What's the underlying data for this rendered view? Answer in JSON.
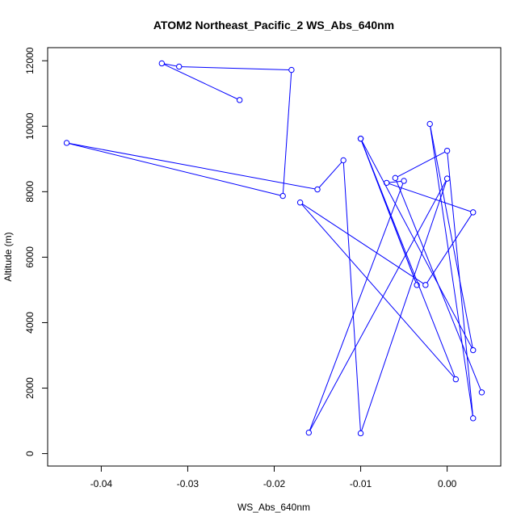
{
  "chart_data": {
    "type": "line",
    "title": "ATOM2 Northeast_Pacific_2 WS_Abs_640nm",
    "xlabel": "WS_Abs_640nm",
    "ylabel": "Altitude (m)",
    "xlim": [
      -0.0462,
      0.0062
    ],
    "ylim": [
      -380,
      12400
    ],
    "x_ticks": [
      -0.04,
      -0.03,
      -0.02,
      -0.01,
      0.0
    ],
    "x_tick_labels": [
      "-0.04",
      "-0.03",
      "-0.02",
      "-0.01",
      "0.00"
    ],
    "y_ticks": [
      0,
      2000,
      4000,
      6000,
      8000,
      10000,
      12000
    ],
    "y_tick_labels": [
      "0",
      "2000",
      "4000",
      "6000",
      "8000",
      "10000",
      "12000"
    ],
    "grid": false,
    "legend": "none",
    "series_color": "#0000ff",
    "points": [
      {
        "x": -0.024,
        "y": 10800
      },
      {
        "x": -0.033,
        "y": 11920
      },
      {
        "x": -0.031,
        "y": 11820
      },
      {
        "x": -0.018,
        "y": 11720
      },
      {
        "x": -0.019,
        "y": 7870
      },
      {
        "x": -0.044,
        "y": 9490
      },
      {
        "x": -0.015,
        "y": 8070
      },
      {
        "x": -0.012,
        "y": 8960
      },
      {
        "x": -0.01,
        "y": 620
      },
      {
        "x": 0.0,
        "y": 8400
      },
      {
        "x": -0.016,
        "y": 640
      },
      {
        "x": -0.005,
        "y": 8330
      },
      {
        "x": -0.007,
        "y": 8270
      },
      {
        "x": 0.003,
        "y": 7370
      },
      {
        "x": -0.0025,
        "y": 5150
      },
      {
        "x": -0.017,
        "y": 7670
      },
      {
        "x": 0.001,
        "y": 2270
      },
      {
        "x": -0.01,
        "y": 9620
      },
      {
        "x": -0.0035,
        "y": 5150
      },
      {
        "x": -0.01,
        "y": 9620
      },
      {
        "x": 0.003,
        "y": 3160
      },
      {
        "x": -0.002,
        "y": 10070
      },
      {
        "x": 0.003,
        "y": 1080
      },
      {
        "x": 0.0,
        "y": 9250
      },
      {
        "x": -0.006,
        "y": 8420
      },
      {
        "x": 0.004,
        "y": 1870
      }
    ]
  }
}
